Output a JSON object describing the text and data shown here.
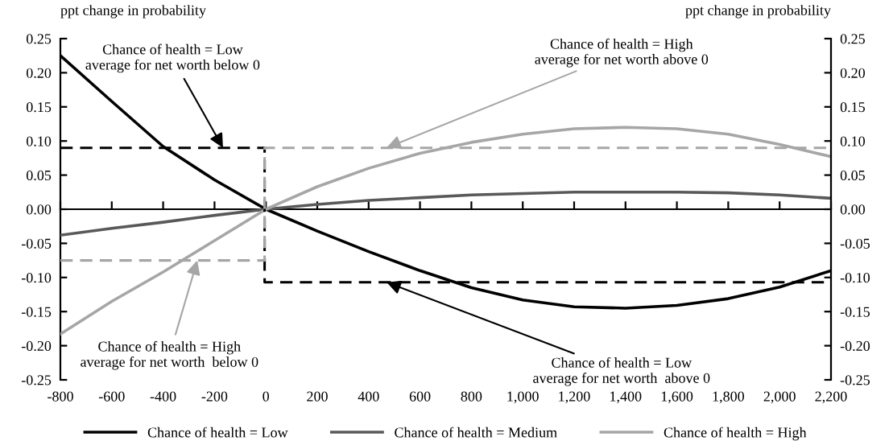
{
  "chart_data": {
    "type": "line",
    "ylabel": "ppt change in probability",
    "y2label": "ppt change in probability",
    "xlim": [
      -800,
      2200
    ],
    "xticks": [
      -800,
      -600,
      -400,
      -200,
      0,
      200,
      400,
      600,
      800,
      {
        "value": 1000,
        "label": "1,000"
      },
      {
        "value": 1200,
        "label": "1,200"
      },
      {
        "value": 1400,
        "label": "1,400"
      },
      {
        "value": 1600,
        "label": "1,600"
      },
      {
        "value": 1800,
        "label": "1,800"
      },
      {
        "value": 2000,
        "label": "2,000"
      },
      {
        "value": 2200,
        "label": "2,200"
      }
    ],
    "ylim": [
      -0.25,
      0.25
    ],
    "yticks": [
      {
        "value": -0.25,
        "label": "-0.25"
      },
      {
        "value": -0.2,
        "label": "-0.20"
      },
      {
        "value": -0.15,
        "label": "-0.15"
      },
      {
        "value": -0.1,
        "label": "-0.10"
      },
      {
        "value": -0.05,
        "label": "-0.05"
      },
      {
        "value": 0,
        "label": "0.00"
      },
      {
        "value": 0.05,
        "label": "0.05"
      },
      {
        "value": 0.1,
        "label": "0.10"
      },
      {
        "value": 0.15,
        "label": "0.15"
      },
      {
        "value": 0.2,
        "label": "0.20"
      },
      {
        "value": 0.25,
        "label": "0.25"
      }
    ],
    "y2lim": [
      -0.25,
      0.25
    ],
    "y2ticks": [
      {
        "value": -0.25,
        "label": "-0.25"
      },
      {
        "value": -0.2,
        "label": "-0.20"
      },
      {
        "value": -0.15,
        "label": "-0.15"
      },
      {
        "value": -0.1,
        "label": "-0.10"
      },
      {
        "value": -0.05,
        "label": "-0.05"
      },
      {
        "value": 0,
        "label": "0.00"
      },
      {
        "value": 0.05,
        "label": "0.05"
      },
      {
        "value": 0.1,
        "label": "0.10"
      },
      {
        "value": 0.15,
        "label": "0.15"
      },
      {
        "value": 0.2,
        "label": "0.20"
      },
      {
        "value": 0.25,
        "label": "0.25"
      }
    ],
    "x": [
      -800,
      -600,
      -400,
      -200,
      0,
      200,
      400,
      600,
      800,
      1000,
      1200,
      1400,
      1600,
      1800,
      2000,
      2200
    ],
    "series": [
      {
        "name": "Chance of health = Low",
        "color": "#000000",
        "line_style": "solid",
        "values": [
          0.225,
          0.158,
          0.092,
          0.043,
          0.0,
          -0.032,
          -0.062,
          -0.09,
          -0.115,
          -0.133,
          -0.143,
          -0.145,
          -0.141,
          -0.131,
          -0.114,
          -0.09
        ]
      },
      {
        "name": "Chance of health = Medium",
        "color": "#595959",
        "line_style": "solid",
        "values": [
          -0.038,
          -0.028,
          -0.019,
          -0.009,
          0.0,
          0.007,
          0.013,
          0.017,
          0.021,
          0.023,
          0.025,
          0.025,
          0.025,
          0.024,
          0.021,
          0.016
        ]
      },
      {
        "name": "Chance of health = High",
        "color": "#a6a6a6",
        "line_style": "solid",
        "values": [
          -0.183,
          -0.135,
          -0.092,
          -0.046,
          0.0,
          0.033,
          0.06,
          0.082,
          0.098,
          0.11,
          0.118,
          0.12,
          0.118,
          0.11,
          0.095,
          0.077
        ]
      },
      {
        "color": "#000000",
        "line_style": "dashed",
        "x": [
          -800,
          -5,
          -5,
          2200
        ],
        "values": [
          0.09,
          0.09,
          -0.107,
          -0.107
        ]
      },
      {
        "color": "#a6a6a6",
        "line_style": "dashed",
        "x": [
          -800,
          -5,
          -5,
          2200
        ],
        "values": [
          -0.075,
          -0.075,
          0.09,
          0.09
        ]
      }
    ],
    "annotations": [
      {
        "text": "Chance of health = Low\naverage for net worth below 0",
        "x": -167,
        "y": 0.09
      },
      {
        "text": "Chance of health = High\naverage for net worth above 0",
        "x": 470,
        "y": 0.09
      },
      {
        "text": "Chance of health = High\naverage for net worth  below 0",
        "x": -267,
        "y": -0.075
      },
      {
        "text": "Chance of health = Low\naverage for net worth  above 0",
        "x": 470,
        "y": -0.107
      }
    ],
    "legend": "bottom",
    "marker": "none"
  }
}
